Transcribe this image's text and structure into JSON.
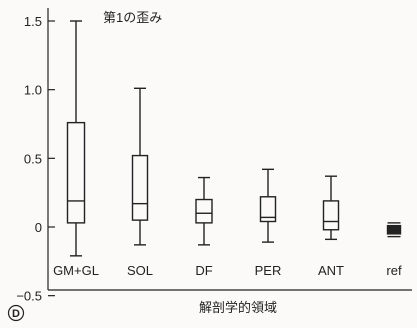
{
  "chart_data": {
    "type": "boxplot",
    "title": "第1の歪み",
    "xlabel": "解剖学的領域",
    "ylabel": "",
    "ylim": [
      -0.5,
      1.6
    ],
    "yticks": [
      "1.5",
      "1.0",
      "0.5",
      "0",
      "−0.5"
    ],
    "ytick_values": [
      1.5,
      1.0,
      0.5,
      0,
      -0.5
    ],
    "grid": false,
    "legend": "none",
    "categories": [
      "GM+GL",
      "SOL",
      "DF",
      "PER",
      "ANT",
      "ref"
    ],
    "series": [
      {
        "category": "GM+GL",
        "min": -0.21,
        "q1": 0.03,
        "median": 0.19,
        "q3": 0.76,
        "max": 1.5
      },
      {
        "category": "SOL",
        "min": -0.13,
        "q1": 0.05,
        "median": 0.17,
        "q3": 0.52,
        "max": 1.01
      },
      {
        "category": "DF",
        "min": -0.13,
        "q1": 0.03,
        "median": 0.1,
        "q3": 0.2,
        "max": 0.36
      },
      {
        "category": "PER",
        "min": -0.11,
        "q1": 0.04,
        "median": 0.07,
        "q3": 0.22,
        "max": 0.42
      },
      {
        "category": "ANT",
        "min": -0.09,
        "q1": -0.02,
        "median": 0.04,
        "q3": 0.19,
        "max": 0.37
      },
      {
        "category": "ref",
        "min": -0.07,
        "q1": -0.05,
        "median": -0.02,
        "q3": 0.01,
        "max": 0.03
      }
    ]
  },
  "panel_label": "D"
}
